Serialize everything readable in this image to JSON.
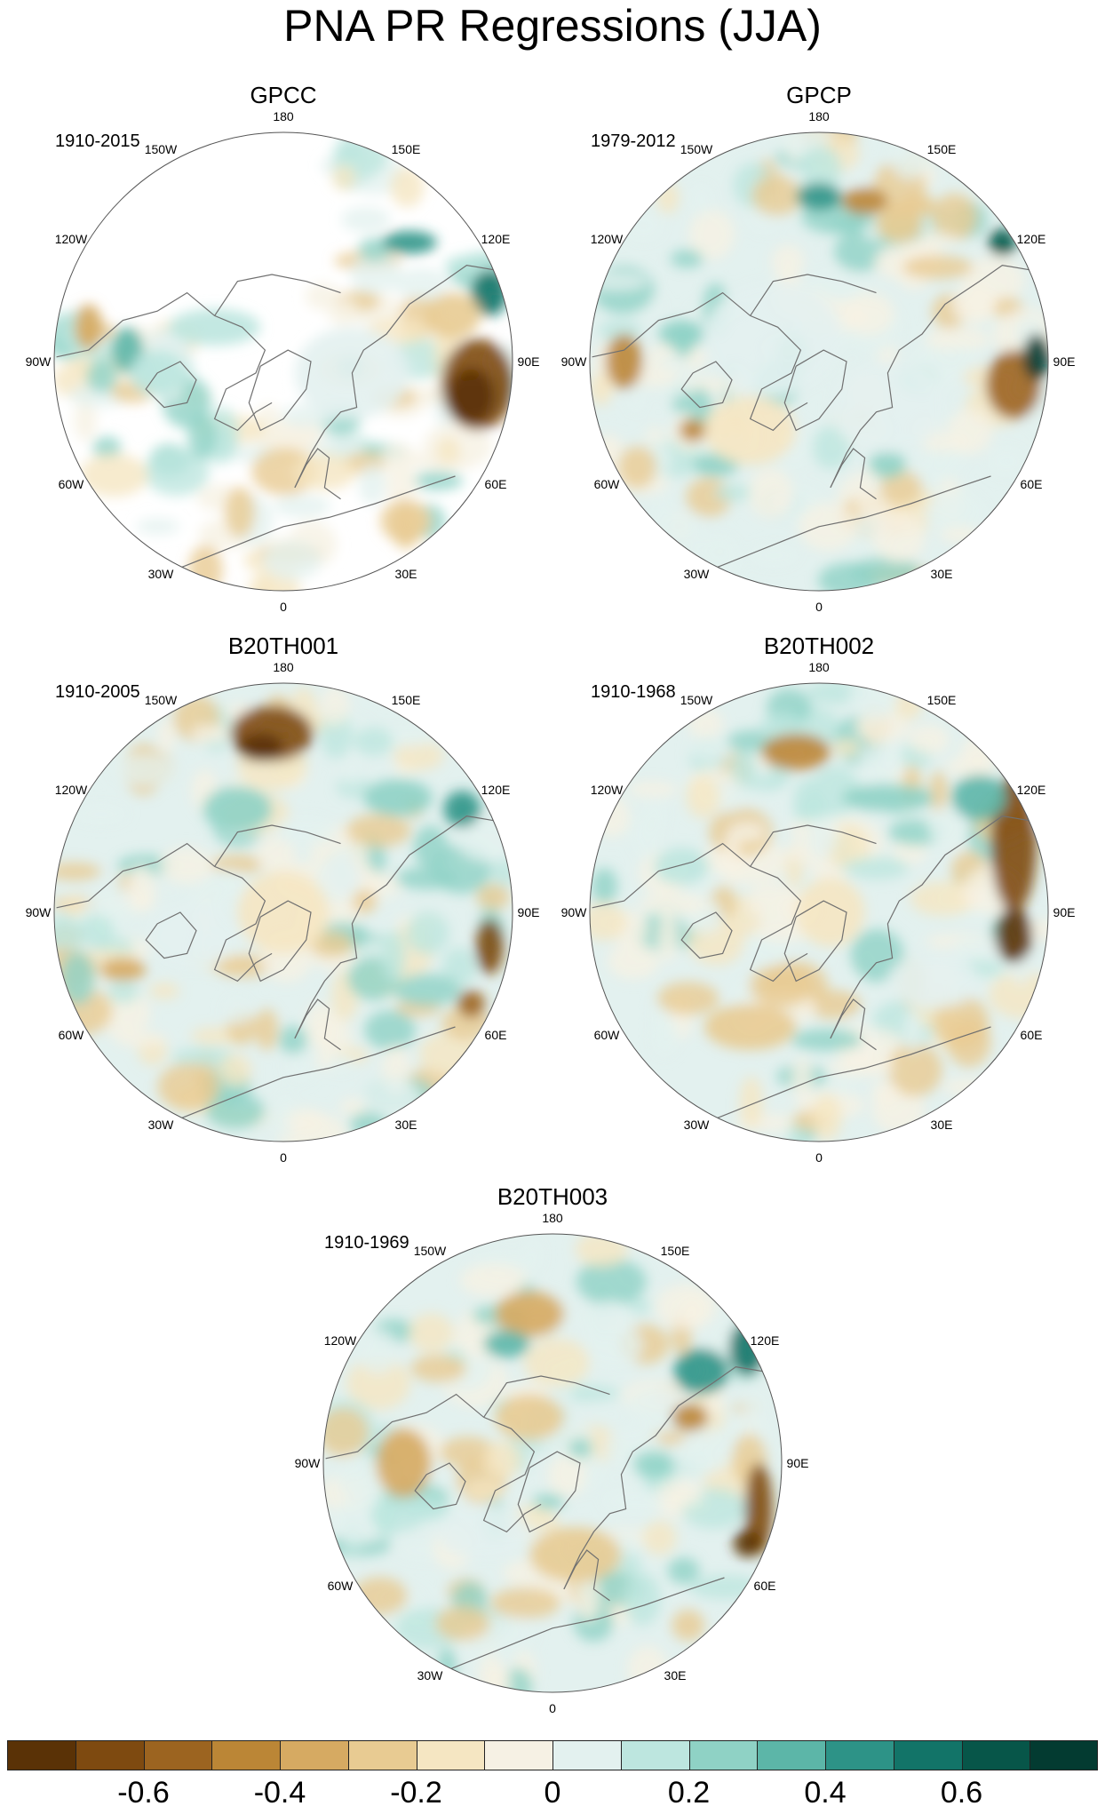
{
  "title": "PNA PR Regressions (JJA)",
  "longitude_labels": [
    "180",
    "150E",
    "120E",
    "90E",
    "60E",
    "30E",
    "0",
    "30W",
    "60W",
    "90W",
    "120W",
    "150W"
  ],
  "panels": [
    {
      "name": "GPCC",
      "period": "1910-2015",
      "land_only": true
    },
    {
      "name": "GPCP",
      "period": "1979-2012",
      "land_only": false
    },
    {
      "name": "B20TH001",
      "period": "1910-2005",
      "land_only": false
    },
    {
      "name": "B20TH002",
      "period": "1910-1968",
      "land_only": false
    },
    {
      "name": "B20TH003",
      "period": "1910-1969",
      "land_only": false
    }
  ],
  "colorbar": {
    "colors": [
      "#5a3206",
      "#7e4a10",
      "#9c6420",
      "#bb8636",
      "#d6aa62",
      "#e8cb92",
      "#f5e6c2",
      "#f6f1e4",
      "#e3f1ef",
      "#bde6df",
      "#8fd2c5",
      "#5cb6a8",
      "#2d9387",
      "#127468",
      "#075649",
      "#033b31"
    ],
    "tick_labels": [
      "-0.6",
      "-0.4",
      "-0.2",
      "0",
      "0.2",
      "0.4",
      "0.6"
    ]
  },
  "map_colors": {
    "land_outline": "#707070",
    "rim": "#555555",
    "no_data": "#ffffff"
  }
}
